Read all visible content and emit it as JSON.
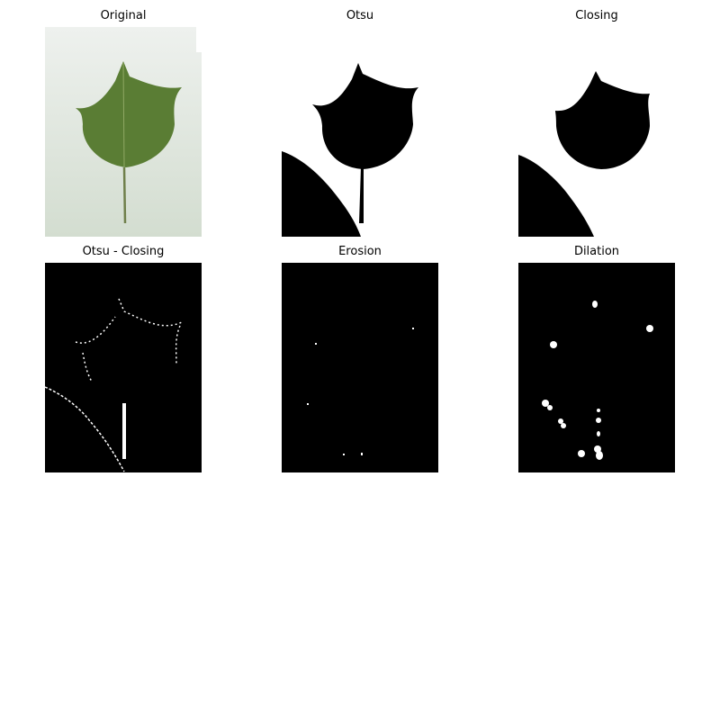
{
  "figure": {
    "panels": [
      {
        "title": "Original"
      },
      {
        "title": "Otsu"
      },
      {
        "title": "Closing"
      },
      {
        "title": "Otsu - Closing"
      },
      {
        "title": "Erosion"
      },
      {
        "title": "Dilation"
      }
    ]
  },
  "colors": {
    "background": "#ffffff",
    "leaf_green": "#5a7d34",
    "leaf_dark": "#3f5e22",
    "photo_bg": "#dfe6df",
    "binary_black": "#000000",
    "binary_white": "#ffffff"
  }
}
